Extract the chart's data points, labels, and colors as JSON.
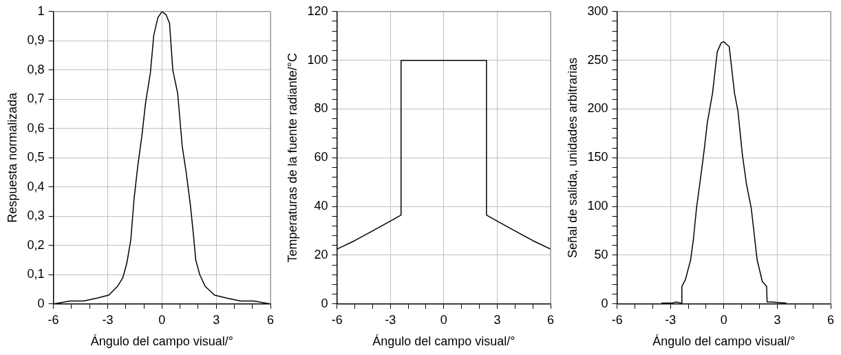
{
  "chart_data": [
    {
      "type": "line",
      "ylabel": "Respuesta normalizada",
      "xlabel": "Ángulo del campo visual/°",
      "xlim": [
        -6,
        6
      ],
      "ylim": [
        0,
        1
      ],
      "xticks": [
        -6,
        {
          "value": -5,
          "label": null
        },
        {
          "value": -4,
          "label": null
        },
        -3,
        {
          "value": -2,
          "label": null
        },
        {
          "value": -1,
          "label": null
        },
        0,
        {
          "value": 1,
          "label": null
        },
        {
          "value": 2,
          "label": null
        },
        3,
        {
          "value": 4,
          "label": null
        },
        {
          "value": 5,
          "label": null
        },
        6
      ],
      "yticks": [
        0,
        {
          "value": 0.1,
          "label": "0,1"
        },
        {
          "value": 0.2,
          "label": "0,2"
        },
        {
          "value": 0.3,
          "label": "0,3"
        },
        {
          "value": 0.4,
          "label": "0,4"
        },
        {
          "value": 0.5,
          "label": "0,5"
        },
        {
          "value": 0.6,
          "label": "0,6"
        },
        {
          "value": 0.7,
          "label": "0,7"
        },
        {
          "value": 0.8,
          "label": "0,8"
        },
        {
          "value": 0.9,
          "label": "0,9"
        },
        1
      ],
      "grid": true,
      "marker": "none",
      "line_style": "solid",
      "series": [
        {
          "color": "#000000",
          "x": [
            -6,
            -5.07,
            -4.33,
            -3.58,
            -2.94,
            -2.46,
            -2.16,
            -1.94,
            -1.72,
            -1.54,
            -1.34,
            -1.12,
            -0.9,
            -0.64,
            -0.45,
            -0.22,
            0,
            0.22,
            0.42,
            0.6,
            0.87,
            1.12,
            1.34,
            1.57,
            1.72,
            1.87,
            2.09,
            2.39,
            2.91,
            3.58,
            4.33,
            5.07,
            6
          ],
          "values": [
            0,
            0.01,
            0.01,
            0.02,
            0.03,
            0.06,
            0.09,
            0.14,
            0.22,
            0.36,
            0.47,
            0.57,
            0.69,
            0.79,
            0.92,
            0.98,
            1,
            0.99,
            0.96,
            0.8,
            0.72,
            0.54,
            0.45,
            0.34,
            0.25,
            0.15,
            0.1,
            0.06,
            0.03,
            0.02,
            0.01,
            0.01,
            0
          ]
        }
      ]
    },
    {
      "type": "line",
      "ylabel": "Temperaturas de la fuente radiante/°C",
      "xlabel": "Ángulo del campo visual/°",
      "xlim": [
        -6,
        6
      ],
      "ylim": [
        0,
        120
      ],
      "xticks": [
        -6,
        {
          "value": -5,
          "label": null
        },
        {
          "value": -4,
          "label": null
        },
        -3,
        {
          "value": -2,
          "label": null
        },
        {
          "value": -1,
          "label": null
        },
        0,
        {
          "value": 1,
          "label": null
        },
        {
          "value": 2,
          "label": null
        },
        3,
        {
          "value": 4,
          "label": null
        },
        {
          "value": 5,
          "label": null
        },
        6
      ],
      "yticks": [
        0,
        {
          "value": 4,
          "label": null
        },
        {
          "value": 8,
          "label": null
        },
        {
          "value": 12,
          "label": null
        },
        {
          "value": 16,
          "label": null
        },
        20,
        {
          "value": 24,
          "label": null
        },
        {
          "value": 28,
          "label": null
        },
        {
          "value": 32,
          "label": null
        },
        {
          "value": 36,
          "label": null
        },
        40,
        {
          "value": 44,
          "label": null
        },
        {
          "value": 48,
          "label": null
        },
        {
          "value": 52,
          "label": null
        },
        {
          "value": 56,
          "label": null
        },
        60,
        {
          "value": 64,
          "label": null
        },
        {
          "value": 68,
          "label": null
        },
        {
          "value": 72,
          "label": null
        },
        {
          "value": 76,
          "label": null
        },
        80,
        {
          "value": 84,
          "label": null
        },
        {
          "value": 88,
          "label": null
        },
        {
          "value": 92,
          "label": null
        },
        {
          "value": 96,
          "label": null
        },
        100,
        {
          "value": 104,
          "label": null
        },
        {
          "value": 108,
          "label": null
        },
        {
          "value": 112,
          "label": null
        },
        {
          "value": 116,
          "label": null
        },
        120
      ],
      "grid": true,
      "marker": "none",
      "line_style": "solid",
      "series": [
        {
          "color": "#000000",
          "x": [
            -6,
            -5,
            -4,
            -3,
            -2.4,
            -2.4,
            2.4,
            2.4,
            3,
            4,
            5,
            6
          ],
          "values": [
            22.5,
            26,
            30,
            34,
            36.5,
            100,
            100,
            36.5,
            34,
            30,
            26,
            22.5
          ]
        }
      ]
    },
    {
      "type": "line",
      "ylabel": "Señal de salida, unidades arbitrarias",
      "xlabel": "Ángulo del campo visual/°",
      "xlim": [
        -6,
        6
      ],
      "ylim": [
        0,
        300
      ],
      "xticks": [
        -6,
        {
          "value": -5,
          "label": null
        },
        {
          "value": -4,
          "label": null
        },
        -3,
        {
          "value": -2,
          "label": null
        },
        {
          "value": -1,
          "label": null
        },
        0,
        {
          "value": 1,
          "label": null
        },
        {
          "value": 2,
          "label": null
        },
        3,
        {
          "value": 4,
          "label": null
        },
        {
          "value": 5,
          "label": null
        },
        6
      ],
      "yticks": [
        0,
        {
          "value": 10,
          "label": null
        },
        {
          "value": 20,
          "label": null
        },
        {
          "value": 30,
          "label": null
        },
        {
          "value": 40,
          "label": null
        },
        50,
        {
          "value": 60,
          "label": null
        },
        {
          "value": 70,
          "label": null
        },
        {
          "value": 80,
          "label": null
        },
        {
          "value": 90,
          "label": null
        },
        100,
        {
          "value": 110,
          "label": null
        },
        {
          "value": 120,
          "label": null
        },
        {
          "value": 130,
          "label": null
        },
        {
          "value": 140,
          "label": null
        },
        150,
        {
          "value": 160,
          "label": null
        },
        {
          "value": 170,
          "label": null
        },
        {
          "value": 180,
          "label": null
        },
        {
          "value": 190,
          "label": null
        },
        200,
        {
          "value": 210,
          "label": null
        },
        {
          "value": 220,
          "label": null
        },
        {
          "value": 230,
          "label": null
        },
        {
          "value": 240,
          "label": null
        },
        250,
        {
          "value": 260,
          "label": null
        },
        {
          "value": 270,
          "label": null
        },
        {
          "value": 280,
          "label": null
        },
        {
          "value": 290,
          "label": null
        },
        300
      ],
      "grid": true,
      "marker": "none",
      "line_style": "solid",
      "series": [
        {
          "color": "#000000",
          "x": [
            -3.5,
            -2.9,
            -2.69,
            -2.39,
            -2.36,
            -2.16,
            -1.87,
            -1.72,
            -1.54,
            -1.34,
            -1.12,
            -0.93,
            -0.64,
            -0.37,
            -0.15,
            0,
            0.3,
            0.6,
            0.79,
            1.04,
            1.27,
            1.54,
            1.87,
            2.16,
            2.4,
            2.43,
            2.69,
            3.51
          ],
          "values": [
            1,
            1,
            2,
            1,
            18,
            25,
            45,
            65,
            98,
            125,
            156,
            186,
            216,
            259,
            268,
            269,
            264,
            216,
            198,
            153,
            123,
            98,
            45,
            23,
            18,
            2,
            2,
            1
          ]
        }
      ]
    }
  ]
}
